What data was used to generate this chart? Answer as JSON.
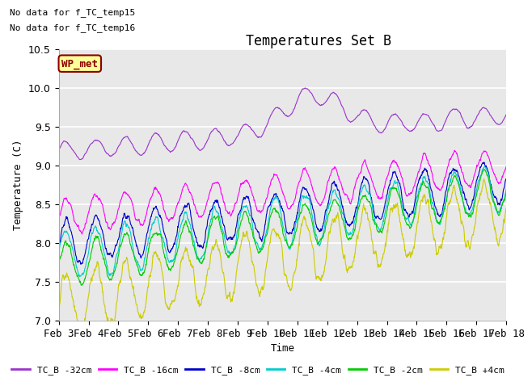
{
  "title": "Temperatures Set B",
  "xlabel": "Time",
  "ylabel": "Temperature (C)",
  "ylim": [
    7.0,
    10.5
  ],
  "no_data_lines": [
    "No data for f_TC_temp15",
    "No data for f_TC_temp16"
  ],
  "wp_met_label": "WP_met",
  "wp_met_color": "#8b0000",
  "wp_met_bg": "#ffff99",
  "xtick_labels": [
    "Feb 3",
    "Feb 4",
    "Feb 5",
    "Feb 6",
    "Feb 7",
    "Feb 8",
    "Feb 9",
    "Feb 10",
    "Feb 11",
    "Feb 12",
    "Feb 13",
    "Feb 14",
    "Feb 15",
    "Feb 16",
    "Feb 17",
    "Feb 18"
  ],
  "legend_entries": [
    {
      "label": "TC_B -32cm",
      "color": "#9933cc"
    },
    {
      "label": "TC_B -16cm",
      "color": "#ff00ff"
    },
    {
      "label": "TC_B -8cm",
      "color": "#0000cc"
    },
    {
      "label": "TC_B -4cm",
      "color": "#00cccc"
    },
    {
      "label": "TC_B -2cm",
      "color": "#00cc00"
    },
    {
      "label": "TC_B +4cm",
      "color": "#cccc00"
    }
  ],
  "background_color": "#ffffff",
  "plot_bg_color": "#e8e8e8",
  "grid_color": "#ffffff",
  "n_points": 1440,
  "date_start": 3,
  "date_end": 18
}
